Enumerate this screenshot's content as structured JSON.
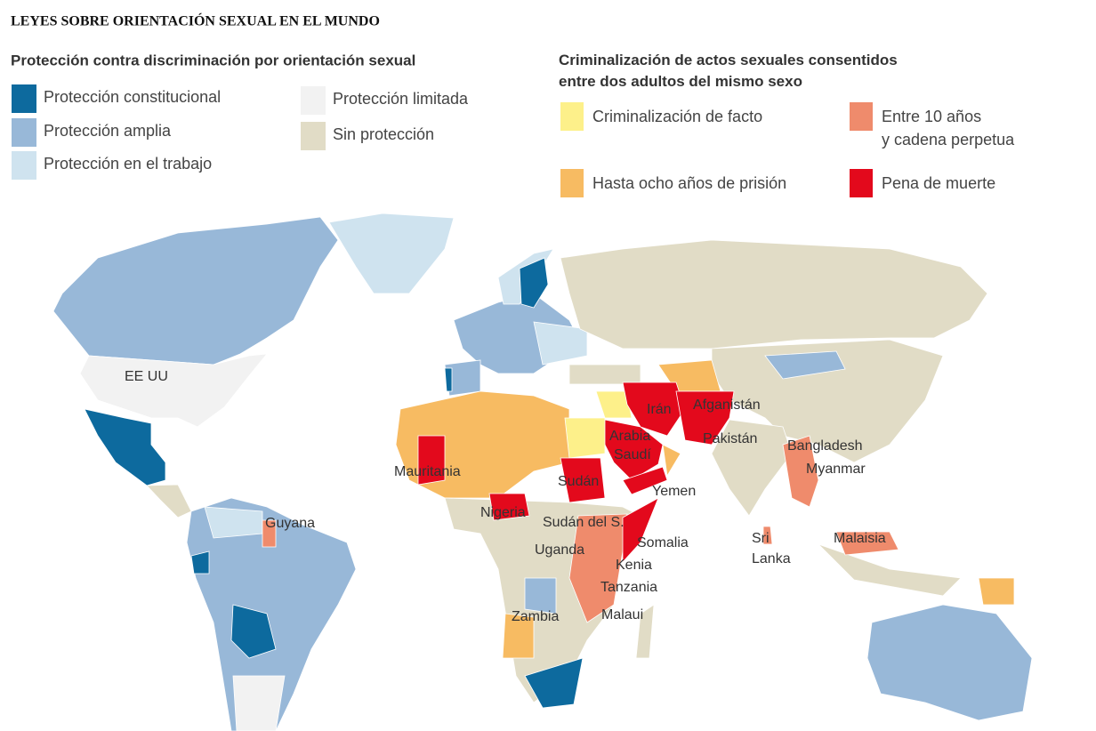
{
  "title": "LEYES SOBRE ORIENTACIÓN SEXUAL EN EL MUNDO",
  "protection": {
    "title": "Protección contra discriminación por orientación sexual",
    "items": [
      {
        "label": "Protección constitucional",
        "color": "#0d6a9e"
      },
      {
        "label": "Protección amplia",
        "color": "#98b8d8"
      },
      {
        "label": "Protección en el trabajo",
        "color": "#cfe3ef"
      },
      {
        "label": "Protección limitada",
        "color": "#f2f2f2"
      },
      {
        "label": "Sin protección",
        "color": "#e1dcc6"
      }
    ]
  },
  "criminalization": {
    "title": [
      "Criminalización de actos sexuales consentidos",
      "entre dos adultos del mismo sexo"
    ],
    "items": [
      {
        "label": [
          "Criminalización de facto"
        ],
        "color": "#fdf08a"
      },
      {
        "label": [
          "Hasta ocho años de prisión"
        ],
        "color": "#f7bb62"
      },
      {
        "label": [
          "Entre 10 años",
          "y cadena perpetua"
        ],
        "color": "#ef8b6c"
      },
      {
        "label": [
          "Pena de muerte"
        ],
        "color": "#e3091c"
      }
    ]
  },
  "map_labels": [
    [
      "EE UU"
    ],
    [
      "Mauritania"
    ],
    [
      "Guyana"
    ],
    [
      "Nigeria"
    ],
    [
      "Sudán"
    ],
    [
      "Sudán del S."
    ],
    [
      "Uganda"
    ],
    [
      "Kenia"
    ],
    [
      "Somalia"
    ],
    [
      "Tanzania"
    ],
    [
      "Malaui"
    ],
    [
      "Zambia"
    ],
    [
      "Irán"
    ],
    [
      "Afganistán"
    ],
    [
      "Arabia",
      "Saudí"
    ],
    [
      "Yemen"
    ],
    [
      "Pakistán"
    ],
    [
      "Bangladesh"
    ],
    [
      "Myanmar"
    ],
    [
      "Sri",
      "Lanka"
    ],
    [
      "Malaisia"
    ]
  ]
}
